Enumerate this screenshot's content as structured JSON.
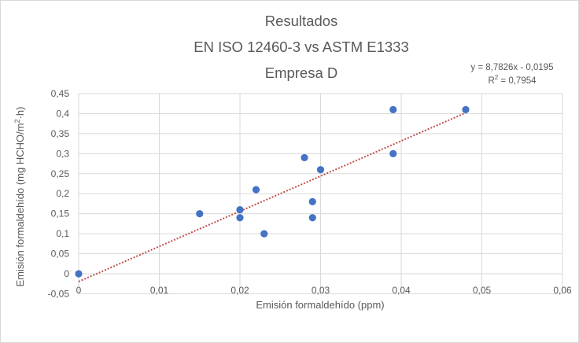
{
  "chart_data": {
    "type": "scatter",
    "title": [
      "Resultados",
      "EN ISO 12460-3 vs ASTM E1333",
      "Empresa D"
    ],
    "xlabel": "Emisión formaldehído (ppm)",
    "ylabel_parts": [
      "Emisión formaldehído (mg HCHO/m",
      "2",
      "·h)"
    ],
    "xlim": [
      0,
      0.06
    ],
    "ylim": [
      -0.05,
      0.45
    ],
    "x_ticks": [
      {
        "v": 0,
        "label": "0"
      },
      {
        "v": 0.01,
        "label": "0,01"
      },
      {
        "v": 0.02,
        "label": "0,02"
      },
      {
        "v": 0.03,
        "label": "0,03"
      },
      {
        "v": 0.04,
        "label": "0,04"
      },
      {
        "v": 0.05,
        "label": "0,05"
      },
      {
        "v": 0.06,
        "label": "0,06"
      }
    ],
    "y_ticks": [
      {
        "v": -0.05,
        "label": "-0,05"
      },
      {
        "v": 0,
        "label": "0"
      },
      {
        "v": 0.05,
        "label": "0,05"
      },
      {
        "v": 0.1,
        "label": "0,1"
      },
      {
        "v": 0.15,
        "label": "0,15"
      },
      {
        "v": 0.2,
        "label": "0,2"
      },
      {
        "v": 0.25,
        "label": "0,25"
      },
      {
        "v": 0.3,
        "label": "0,3"
      },
      {
        "v": 0.35,
        "label": "0,35"
      },
      {
        "v": 0.4,
        "label": "0,4"
      },
      {
        "v": 0.45,
        "label": "0,45"
      }
    ],
    "grid": true,
    "points": [
      {
        "x": 0,
        "y": 0
      },
      {
        "x": 0.015,
        "y": 0.15
      },
      {
        "x": 0.02,
        "y": 0.16
      },
      {
        "x": 0.02,
        "y": 0.14
      },
      {
        "x": 0.022,
        "y": 0.21
      },
      {
        "x": 0.023,
        "y": 0.1
      },
      {
        "x": 0.028,
        "y": 0.29
      },
      {
        "x": 0.029,
        "y": 0.18
      },
      {
        "x": 0.029,
        "y": 0.14
      },
      {
        "x": 0.03,
        "y": 0.26
      },
      {
        "x": 0.039,
        "y": 0.41
      },
      {
        "x": 0.039,
        "y": 0.3
      },
      {
        "x": 0.048,
        "y": 0.41
      }
    ],
    "trendline": {
      "type": "linear",
      "slope": 8.7826,
      "intercept": -0.0195,
      "x_range": [
        0,
        0.048
      ],
      "equation": "y = 8,7826x - 0,0195",
      "r2_parts": [
        "R",
        "2",
        " = 0,7954"
      ],
      "color": "#c0504d"
    },
    "point_color": "#4472c4",
    "grid_color": "#d9d9d9"
  }
}
